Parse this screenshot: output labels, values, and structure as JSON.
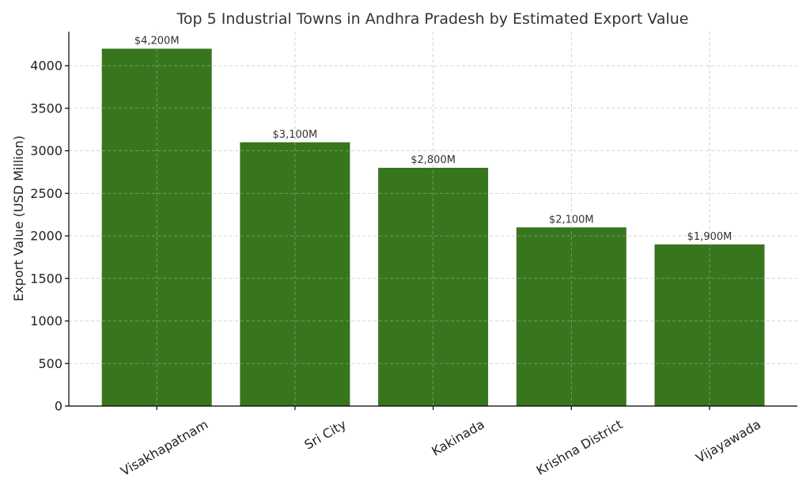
{
  "chart_data": {
    "type": "bar",
    "title": "Top 5 Industrial Towns in Andhra Pradesh by Estimated Export Value",
    "xlabel": "",
    "ylabel": "Export Value (USD Million)",
    "categories": [
      "Visakhapatnam",
      "Sri City",
      "Kakinada",
      "Krishna District",
      "Vijayawada"
    ],
    "values": [
      4200,
      3100,
      2800,
      2100,
      1900
    ],
    "data_labels": [
      "$4,200M",
      "$3,100M",
      "$2,800M",
      "$2,100M",
      "$1,900M"
    ],
    "ylim": [
      0,
      4400
    ],
    "yticks": [
      0,
      500,
      1000,
      1500,
      2000,
      2500,
      3000,
      3500,
      4000
    ],
    "grid": true,
    "bar_color": "#38761d",
    "x_tick_rotation": "30 degrees"
  }
}
